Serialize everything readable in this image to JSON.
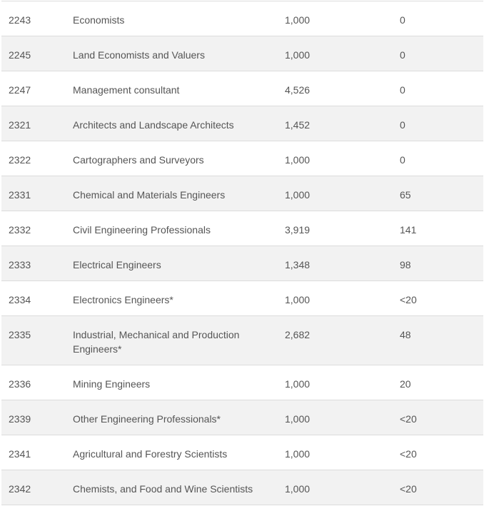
{
  "rows": [
    {
      "code": "2243",
      "occupation": "Economists",
      "col3": "1,000",
      "col4": "0"
    },
    {
      "code": "2245",
      "occupation": "Land Economists and Valuers",
      "col3": "1,000",
      "col4": "0"
    },
    {
      "code": "2247",
      "occupation": "Management consultant",
      "col3": "4,526",
      "col4": "0"
    },
    {
      "code": "2321",
      "occupation": "Architects and Landscape Architects",
      "col3": "1,452",
      "col4": "0"
    },
    {
      "code": "2322",
      "occupation": "Cartographers and Surveyors",
      "col3": "1,000",
      "col4": "0"
    },
    {
      "code": "2331",
      "occupation": "Chemical and Materials Engineers",
      "col3": "1,000",
      "col4": "65"
    },
    {
      "code": "2332",
      "occupation": "Civil Engineering Professionals",
      "col3": "3,919",
      "col4": "141"
    },
    {
      "code": "2333",
      "occupation": "Electrical Engineers",
      "col3": "1,348",
      "col4": "98"
    },
    {
      "code": "2334",
      "occupation": "Electronics Engineers*",
      "col3": "1,000",
      "col4": "<20"
    },
    {
      "code": "2335",
      "occupation": "Industrial, Mechanical and Production Engineers*",
      "col3": "2,682",
      "col4": "48"
    },
    {
      "code": "2336",
      "occupation": "Mining Engineers",
      "col3": "1,000",
      "col4": "20"
    },
    {
      "code": "2339",
      "occupation": "Other Engineering Professionals*",
      "col3": "1,000",
      "col4": "<20"
    },
    {
      "code": "2341",
      "occupation": "Agricultural and Forestry Scientists",
      "col3": "1,000",
      "col4": "<20"
    },
    {
      "code": "2342",
      "occupation": "Chemists, and Food and Wine Scientists",
      "col3": "1,000",
      "col4": "<20"
    }
  ]
}
